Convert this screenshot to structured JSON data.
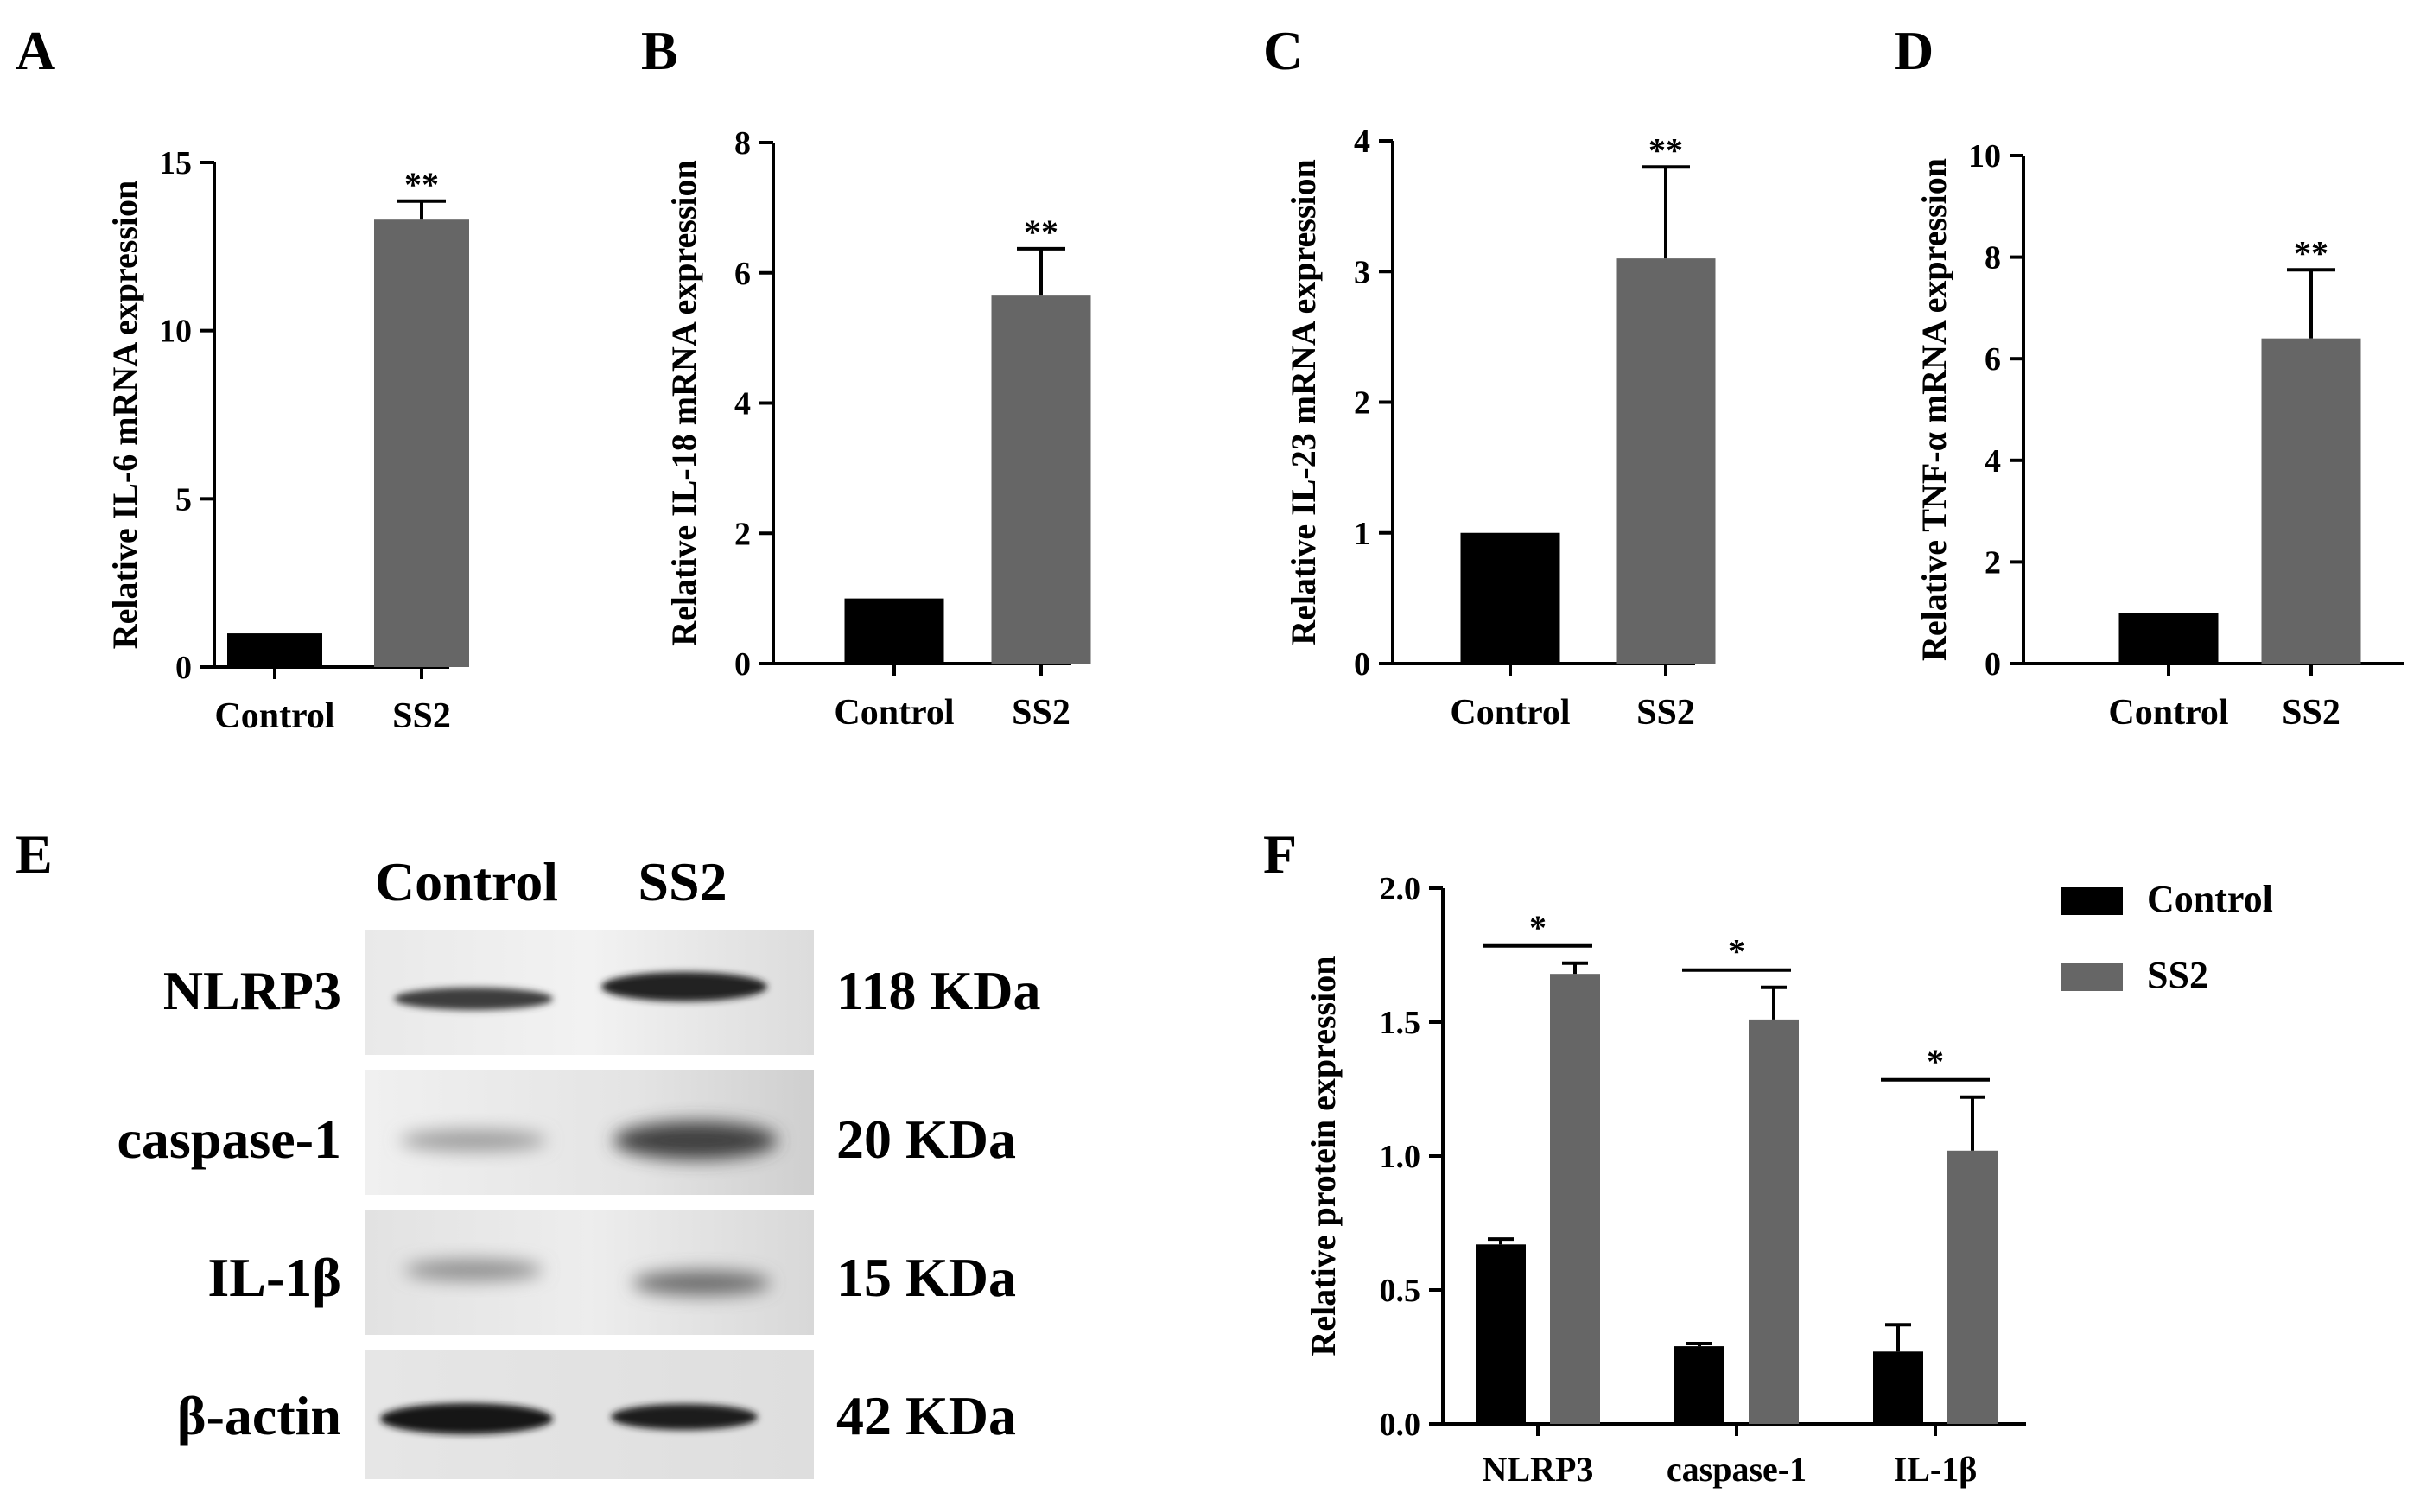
{
  "chart_data": [
    {
      "panel": "A",
      "type": "bar",
      "categories": [
        "Control",
        "SS2"
      ],
      "values": [
        1.0,
        13.3
      ],
      "errors": [
        0,
        0.55
      ],
      "ylabel": "Relative IL-6 mRNA expression",
      "xlabel": "",
      "ylim": [
        0,
        15
      ],
      "yticks": [
        "0",
        "5",
        "10",
        "15"
      ],
      "ytick_values": [
        0,
        5,
        10,
        15
      ],
      "significance": [
        {
          "label": "**",
          "category": "SS2"
        }
      ]
    },
    {
      "panel": "B",
      "type": "bar",
      "categories": [
        "Control",
        "SS2"
      ],
      "values": [
        1.0,
        5.65
      ],
      "errors": [
        0,
        0.72
      ],
      "ylabel": "Relative IL-18 mRNA expression",
      "xlabel": "",
      "ylim": [
        0,
        8
      ],
      "yticks": [
        "0",
        "2",
        "4",
        "6",
        "8"
      ],
      "ytick_values": [
        0,
        2,
        4,
        6,
        8
      ],
      "significance": [
        {
          "label": "**",
          "category": "SS2"
        }
      ]
    },
    {
      "panel": "C",
      "type": "bar",
      "categories": [
        "Control",
        "SS2"
      ],
      "values": [
        1.0,
        3.1
      ],
      "errors": [
        0,
        0.7
      ],
      "ylabel": "Relative IL-23 mRNA expression",
      "xlabel": "",
      "ylim": [
        0,
        4
      ],
      "yticks": [
        "0",
        "1",
        "2",
        "3",
        "4"
      ],
      "ytick_values": [
        0,
        1,
        2,
        3,
        4
      ],
      "significance": [
        {
          "label": "**",
          "category": "SS2"
        }
      ]
    },
    {
      "panel": "D",
      "type": "bar",
      "categories": [
        "Control",
        "SS2"
      ],
      "values": [
        1.0,
        6.4
      ],
      "errors": [
        0,
        1.35
      ],
      "ylabel": "Relative TNF-α mRNA expression",
      "xlabel": "",
      "ylim": [
        0,
        10
      ],
      "yticks": [
        "0",
        "2",
        "4",
        "6",
        "8",
        "10"
      ],
      "ytick_values": [
        0,
        2,
        4,
        6,
        8,
        10
      ],
      "significance": [
        {
          "label": "**",
          "category": "SS2"
        }
      ]
    },
    {
      "panel": "F",
      "type": "bar",
      "categories": [
        "NLRP3",
        "caspase-1",
        "IL-1β"
      ],
      "series": [
        {
          "name": "Control",
          "values": [
            0.67,
            0.29,
            0.27
          ],
          "errors": [
            0.02,
            0.01,
            0.1
          ],
          "color": "#000000"
        },
        {
          "name": "SS2",
          "values": [
            1.68,
            1.51,
            1.02
          ],
          "errors": [
            0.04,
            0.12,
            0.2
          ],
          "color": "#666666"
        }
      ],
      "ylabel": "Relative protein expression",
      "xlabel": "",
      "ylim": [
        0,
        2.0
      ],
      "yticks": [
        "0.0",
        "0.5",
        "1.0",
        "1.5",
        "2.0"
      ],
      "ytick_values": [
        0,
        0.5,
        1.0,
        1.5,
        2.0
      ],
      "significance": [
        {
          "label": "*",
          "category": "NLRP3"
        },
        {
          "label": "*",
          "category": "caspase-1"
        },
        {
          "label": "*",
          "category": "IL-1β"
        }
      ],
      "legend_position": "top-right"
    }
  ],
  "western_blot": {
    "panel": "E",
    "lanes": [
      "Control",
      "SS2"
    ],
    "rows": [
      {
        "protein": "NLRP3",
        "size": "118 KDa"
      },
      {
        "protein": "caspase-1",
        "size": "20 KDa"
      },
      {
        "protein": "IL-1β",
        "size": "15 KDa"
      },
      {
        "protein": "β-actin",
        "size": "42 KDa"
      }
    ]
  },
  "colors": {
    "control": "#000000",
    "ss2": "#666666",
    "axis": "#000000"
  }
}
